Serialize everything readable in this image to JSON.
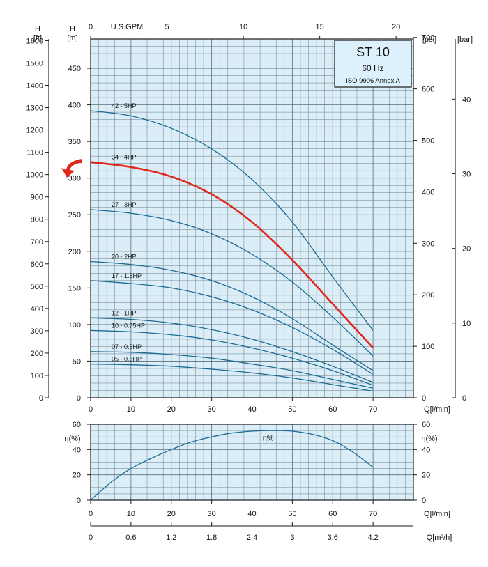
{
  "title_box": {
    "model": "ST 10",
    "frequency": "60 Hz",
    "standard": "ISO 9906 Annex A"
  },
  "colors": {
    "plot_fill": "#dbeef8",
    "grid": "#5a6f7c",
    "curve": "#1c6a93",
    "highlight": "#e0271b",
    "title_fill": "#dcf1fb"
  },
  "chart_data": [
    {
      "type": "line",
      "name": "head_curves",
      "x_axis": {
        "label": "Q[l/min]",
        "ticks": [
          0,
          10,
          20,
          30,
          40,
          50,
          60,
          70
        ],
        "range": [
          0,
          80
        ]
      },
      "top_axis": {
        "label": "U.S.GPM",
        "ticks": [
          0,
          5,
          10,
          15,
          20
        ]
      },
      "left_ft_axis": {
        "label": "[ft]",
        "title": "H",
        "ticks": [
          0,
          100,
          200,
          300,
          400,
          500,
          600,
          700,
          800,
          900,
          1000,
          1100,
          1200,
          1300,
          1400,
          1500,
          1600
        ]
      },
      "left_m_axis": {
        "label": "[m]",
        "title": "H",
        "ticks": [
          0,
          50,
          100,
          150,
          200,
          250,
          300,
          350,
          400,
          450
        ],
        "range": [
          0,
          490
        ]
      },
      "right_psi_axis": {
        "label": "[psi]",
        "ticks": [
          0,
          100,
          200,
          300,
          400,
          500,
          600,
          700
        ]
      },
      "right_bar_axis": {
        "label": "[bar]",
        "ticks": [
          0,
          10,
          20,
          30,
          40
        ]
      },
      "x": [
        0,
        10,
        20,
        30,
        40,
        50,
        60,
        70
      ],
      "series": [
        {
          "name": "42 - 5HP",
          "values": [
            392,
            385,
            368,
            340,
            298,
            240,
            165,
            92
          ],
          "highlight": false
        },
        {
          "name": "34 - 4HP",
          "values": [
            322,
            315,
            302,
            278,
            240,
            188,
            128,
            68
          ],
          "highlight": true
        },
        {
          "name": "27 - 3HP",
          "values": [
            257,
            252,
            242,
            224,
            196,
            158,
            110,
            57
          ],
          "highlight": false
        },
        {
          "name": "20 - 2HP",
          "values": [
            186,
            182,
            174,
            160,
            138,
            108,
            72,
            37
          ],
          "highlight": false
        },
        {
          "name": "17 - 1.5HP",
          "values": [
            160,
            156,
            150,
            138,
            120,
            96,
            66,
            32
          ],
          "highlight": false
        },
        {
          "name": "12 - 1HP",
          "values": [
            109,
            107,
            102,
            93,
            80,
            63,
            43,
            21
          ],
          "highlight": false
        },
        {
          "name": "10 - 0.75HP",
          "values": [
            92,
            90,
            86,
            79,
            68,
            54,
            37,
            17
          ],
          "highlight": false
        },
        {
          "name": "07 - 0.5HP",
          "values": [
            63,
            62,
            59,
            54,
            46,
            37,
            25,
            13
          ],
          "highlight": false
        },
        {
          "name": "05 - 0.5HP",
          "values": [
            46,
            45,
            43,
            39,
            34,
            27,
            18,
            9
          ],
          "highlight": false
        }
      ]
    },
    {
      "type": "line",
      "name": "efficiency_curve",
      "x_axis": {
        "label": "Q[l/min]",
        "ticks": [
          0,
          10,
          20,
          30,
          40,
          50,
          60,
          70
        ],
        "range": [
          0,
          80
        ]
      },
      "x2_axis": {
        "label": "Q[m³/h]",
        "ticks": [
          "0",
          "0.6",
          "1.2",
          "1.8",
          "2.4",
          "3",
          "3.6",
          "4.2"
        ]
      },
      "y_axis": {
        "label": "η(%)",
        "ticks": [
          0,
          20,
          40,
          60
        ],
        "range": [
          0,
          60
        ]
      },
      "curve_label": "η%",
      "x": [
        0,
        5,
        10,
        15,
        20,
        25,
        30,
        35,
        40,
        45,
        50,
        55,
        60,
        65,
        70
      ],
      "values": [
        0,
        14,
        25,
        33,
        40,
        46,
        50,
        53,
        54.5,
        55,
        54.5,
        52,
        47,
        38,
        26
      ]
    }
  ]
}
